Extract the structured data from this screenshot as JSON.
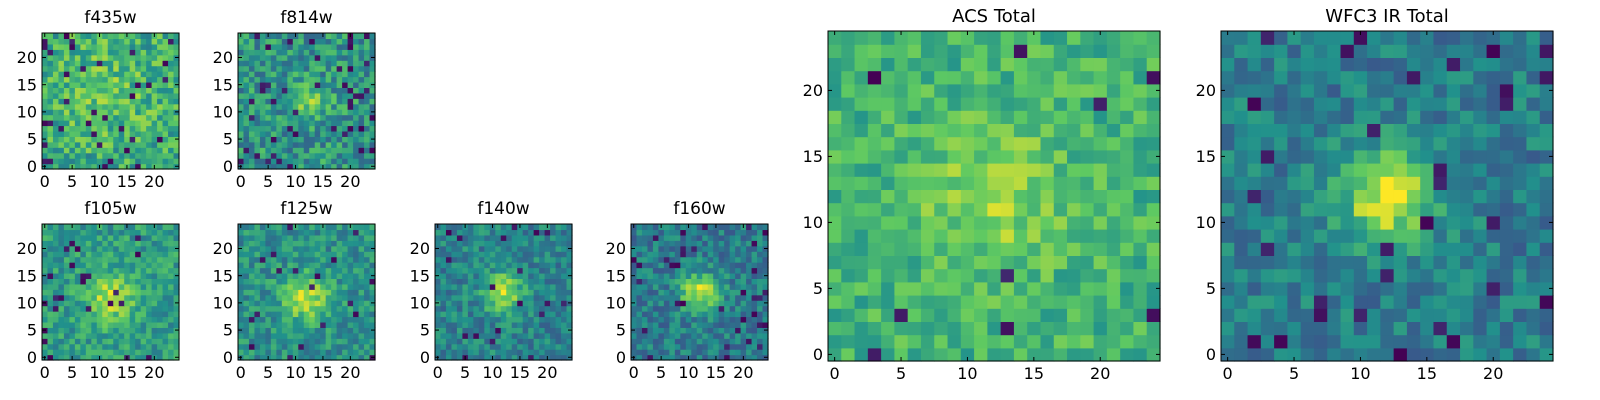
{
  "chart_data": [
    {
      "id": "f435w",
      "type": "heatmap",
      "title": "f435w",
      "nx": 25,
      "ny": 25,
      "xticks": [
        0,
        5,
        10,
        15,
        20
      ],
      "yticks": [
        0,
        5,
        10,
        15,
        20
      ],
      "colormap": "viridis",
      "peak": [
        11,
        14
      ],
      "sigma": 7,
      "amp": 0.12,
      "base": 0.6,
      "noise": 0.4,
      "lows": 0.05,
      "seed": 11
    },
    {
      "id": "f814w",
      "type": "heatmap",
      "title": "f814w",
      "nx": 25,
      "ny": 25,
      "xticks": [
        0,
        5,
        10,
        15,
        20
      ],
      "yticks": [
        0,
        5,
        10,
        15,
        20
      ],
      "colormap": "viridis",
      "peak": [
        12,
        12
      ],
      "sigma": 2.5,
      "amp": 0.28,
      "base": 0.52,
      "noise": 0.4,
      "lows": 0.07,
      "seed": 23
    },
    {
      "id": "f105w",
      "type": "heatmap",
      "title": "f105w",
      "nx": 25,
      "ny": 25,
      "xticks": [
        0,
        5,
        10,
        15,
        20
      ],
      "yticks": [
        0,
        5,
        10,
        15,
        20
      ],
      "colormap": "viridis",
      "peak": [
        12,
        11
      ],
      "sigma": 3.0,
      "amp": 0.35,
      "base": 0.55,
      "noise": 0.3,
      "lows": 0.04,
      "seed": 37
    },
    {
      "id": "f125w",
      "type": "heatmap",
      "title": "f125w",
      "nx": 25,
      "ny": 25,
      "xticks": [
        0,
        5,
        10,
        15,
        20
      ],
      "yticks": [
        0,
        5,
        10,
        15,
        20
      ],
      "colormap": "viridis",
      "peak": [
        12,
        11
      ],
      "sigma": 3.0,
      "amp": 0.4,
      "base": 0.5,
      "noise": 0.3,
      "lows": 0.04,
      "seed": 41
    },
    {
      "id": "f140w",
      "type": "heatmap",
      "title": "f140w",
      "nx": 25,
      "ny": 25,
      "xticks": [
        0,
        5,
        10,
        15,
        20
      ],
      "yticks": [
        0,
        5,
        10,
        15,
        20
      ],
      "colormap": "viridis",
      "peak": [
        12,
        12
      ],
      "sigma": 2.5,
      "amp": 0.45,
      "base": 0.45,
      "noise": 0.3,
      "lows": 0.04,
      "seed": 53
    },
    {
      "id": "f160w",
      "type": "heatmap",
      "title": "f160w",
      "nx": 25,
      "ny": 25,
      "xticks": [
        0,
        5,
        10,
        15,
        20
      ],
      "yticks": [
        0,
        5,
        10,
        15,
        20
      ],
      "colormap": "viridis",
      "peak": [
        12,
        12
      ],
      "sigma": 2.5,
      "amp": 0.5,
      "base": 0.42,
      "noise": 0.3,
      "lows": 0.05,
      "seed": 67
    },
    {
      "id": "acs_total",
      "type": "heatmap",
      "title": "ACS Total",
      "nx": 25,
      "ny": 25,
      "xticks": [
        0,
        5,
        10,
        15,
        20
      ],
      "yticks": [
        0,
        5,
        10,
        15,
        20
      ],
      "colormap": "viridis",
      "peak": [
        12,
        12
      ],
      "sigma": 3.5,
      "amp": 0.2,
      "base": 0.65,
      "noise": 0.28,
      "lows": 0.02,
      "seed": 79
    },
    {
      "id": "wfc3_ir_total",
      "type": "heatmap",
      "title": "WFC3 IR Total",
      "nx": 25,
      "ny": 25,
      "xticks": [
        0,
        5,
        10,
        15,
        20
      ],
      "yticks": [
        0,
        5,
        10,
        15,
        20
      ],
      "colormap": "viridis",
      "peak": [
        12,
        12
      ],
      "sigma": 2.5,
      "amp": 0.55,
      "base": 0.42,
      "noise": 0.28,
      "lows": 0.05,
      "seed": 97
    }
  ]
}
